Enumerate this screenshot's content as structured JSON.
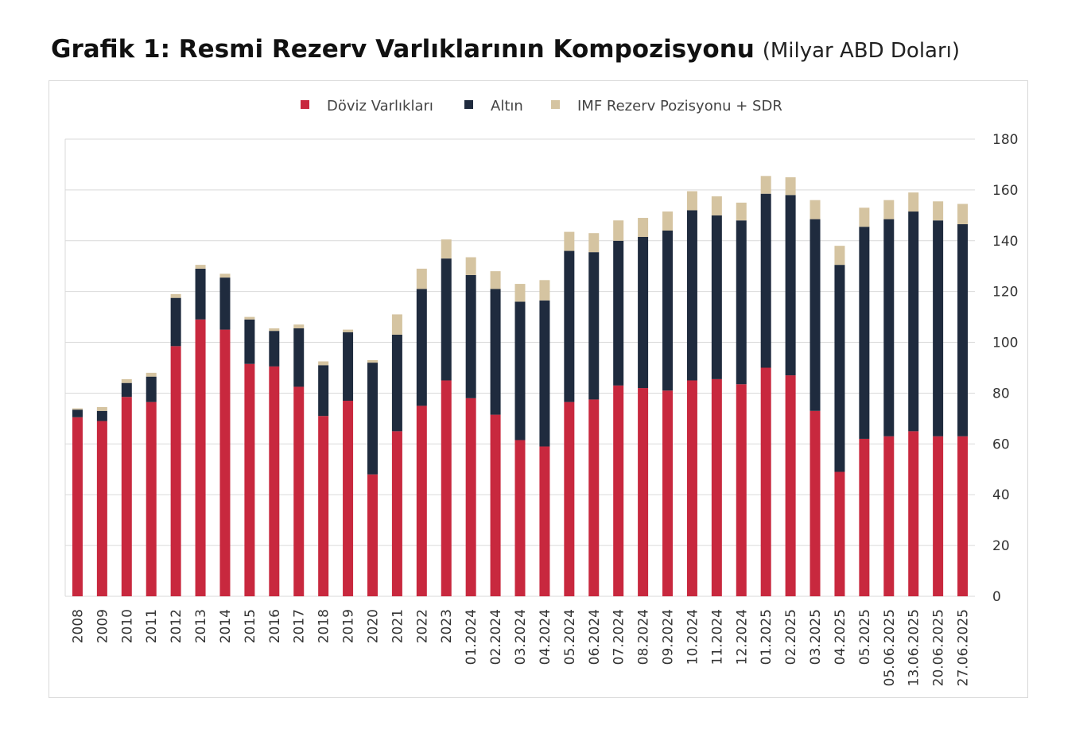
{
  "title": {
    "main": "Grafik 1: Resmi Rezerv Varlıklarının Kompozisyonu",
    "unit": "(Milyar ABD Doları)"
  },
  "colors": {
    "doviz": "#c8283e",
    "altin": "#1f2b3e",
    "imf": "#d5c4a1",
    "grid": "#d9d9d9"
  },
  "chart_data": {
    "type": "bar",
    "stacked": true,
    "categories": [
      "2008",
      "2009",
      "2010",
      "2011",
      "2012",
      "2013",
      "2014",
      "2015",
      "2016",
      "2017",
      "2018",
      "2019",
      "2020",
      "2021",
      "2022",
      "2023",
      "01.2024",
      "02.2024",
      "03.2024",
      "04.2024",
      "05.2024",
      "06.2024",
      "07.2024",
      "08.2024",
      "09.2024",
      "10.2024",
      "11.2024",
      "12.2024",
      "01.2025",
      "02.2025",
      "03.2025",
      "04.2025",
      "05.2025",
      "05.06.2025",
      "13.06.2025",
      "20.06.2025",
      "27.06.2025"
    ],
    "series": [
      {
        "name": "Döviz Varlıkları",
        "color": "#c8283e",
        "values": [
          70.5,
          69,
          78.5,
          76.5,
          98.5,
          109,
          105,
          91.5,
          90.5,
          82.5,
          71,
          77,
          48,
          65,
          75,
          85,
          78,
          71.5,
          61.5,
          59,
          76.5,
          77.5,
          83,
          82,
          81,
          85,
          85.5,
          83.5,
          90,
          87,
          73,
          49,
          62,
          63,
          65,
          63,
          63
        ]
      },
      {
        "name": "Altın",
        "color": "#1f2b3e",
        "values": [
          3,
          4,
          5.5,
          10,
          19,
          20,
          20.5,
          17.5,
          14,
          23,
          20,
          27,
          44,
          38,
          46,
          48,
          48.5,
          49.5,
          54.5,
          57.5,
          59.5,
          58,
          57,
          59.5,
          63,
          67,
          64.5,
          64.5,
          68.5,
          71,
          75.5,
          81.5,
          83.5,
          85.5,
          86.5,
          85,
          83.5
        ]
      },
      {
        "name": "IMF Rezerv Pozisyonu + SDR",
        "color": "#d5c4a1",
        "values": [
          0.5,
          1.5,
          1.5,
          1.5,
          1.5,
          1.5,
          1.5,
          1,
          1,
          1.5,
          1.5,
          1,
          1,
          8,
          8,
          7.5,
          7,
          7,
          7,
          8,
          7.5,
          7.5,
          8,
          7.5,
          7.5,
          7.5,
          7.5,
          7,
          7,
          7,
          7.5,
          7.5,
          7.5,
          7.5,
          7.5,
          7.5,
          8
        ]
      }
    ],
    "ylim": [
      0,
      180
    ],
    "yticks": [
      "0",
      "20",
      "40",
      "60",
      "80",
      "100",
      "120",
      "140",
      "160",
      "180"
    ],
    "y_axis_side": "right",
    "grid": true,
    "legend_position": "top-center"
  }
}
